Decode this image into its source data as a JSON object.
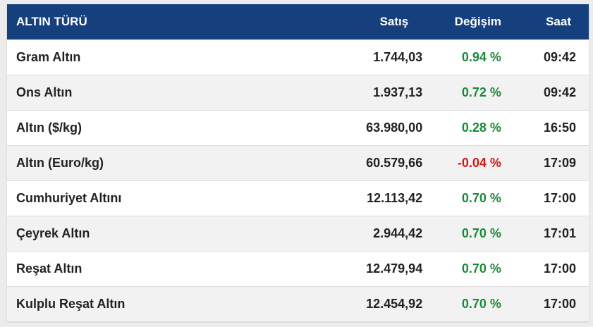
{
  "header": {
    "type_label": "ALTIN TÜRÜ",
    "sell_label": "Satış",
    "change_label": "Değişim",
    "time_label": "Saat"
  },
  "colors": {
    "header_bg": "#163f7e",
    "positive": "#1a8a3a",
    "negative": "#cc1a1a"
  },
  "rows": [
    {
      "name": "Gram Altın",
      "sell": "1.744,03",
      "change": "0.94 %",
      "time": "09:42",
      "direction": "up"
    },
    {
      "name": "Ons Altın",
      "sell": "1.937,13",
      "change": "0.72 %",
      "time": "09:42",
      "direction": "up"
    },
    {
      "name": "Altın ($/kg)",
      "sell": "63.980,00",
      "change": "0.28 %",
      "time": "16:50",
      "direction": "up"
    },
    {
      "name": "Altın (Euro/kg)",
      "sell": "60.579,66",
      "change": "-0.04 %",
      "time": "17:09",
      "direction": "down"
    },
    {
      "name": "Cumhuriyet Altını",
      "sell": "12.113,42",
      "change": "0.70 %",
      "time": "17:00",
      "direction": "up"
    },
    {
      "name": "Çeyrek Altın",
      "sell": "2.944,42",
      "change": "0.70 %",
      "time": "17:01",
      "direction": "up"
    },
    {
      "name": "Reşat Altın",
      "sell": "12.479,94",
      "change": "0.70 %",
      "time": "17:00",
      "direction": "up"
    },
    {
      "name": "Kulplu Reşat Altın",
      "sell": "12.454,92",
      "change": "0.70 %",
      "time": "17:00",
      "direction": "up"
    }
  ]
}
